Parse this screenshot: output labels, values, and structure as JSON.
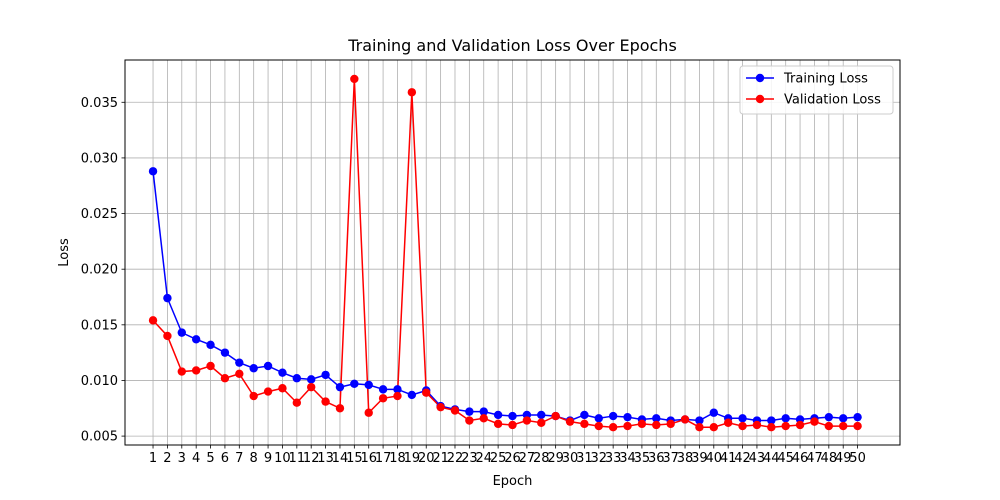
{
  "chart_data": {
    "type": "line",
    "title": "Training and Validation Loss Over Epochs",
    "xlabel": "Epoch",
    "ylabel": "Loss",
    "x": [
      1,
      2,
      3,
      4,
      5,
      6,
      7,
      8,
      9,
      10,
      11,
      12,
      13,
      14,
      15,
      16,
      17,
      18,
      19,
      20,
      21,
      22,
      23,
      24,
      25,
      26,
      27,
      28,
      29,
      30,
      31,
      32,
      33,
      34,
      35,
      36,
      37,
      38,
      39,
      40,
      41,
      42,
      43,
      44,
      45,
      46,
      47,
      48,
      49,
      50
    ],
    "xlim": [
      -0.95,
      52.95
    ],
    "ylim": [
      0.0042,
      0.0388
    ],
    "yticks": [
      0.005,
      0.01,
      0.015,
      0.02,
      0.025,
      0.03,
      0.035
    ],
    "ytick_labels": [
      "0.005",
      "0.010",
      "0.015",
      "0.020",
      "0.025",
      "0.030",
      "0.035"
    ],
    "grid": true,
    "legend_position": "top-right",
    "series": [
      {
        "name": "Training Loss",
        "color": "#0000ff",
        "marker": "circle",
        "values": [
          0.0288,
          0.0174,
          0.0143,
          0.0137,
          0.0132,
          0.0125,
          0.0116,
          0.0111,
          0.0113,
          0.0107,
          0.0102,
          0.0101,
          0.0105,
          0.0094,
          0.0097,
          0.0096,
          0.0092,
          0.0092,
          0.0087,
          0.0091,
          0.0077,
          0.0074,
          0.0072,
          0.0072,
          0.0069,
          0.0068,
          0.0069,
          0.0069,
          0.0068,
          0.0064,
          0.0069,
          0.0066,
          0.0068,
          0.0067,
          0.0065,
          0.0066,
          0.0064,
          0.0065,
          0.0064,
          0.0071,
          0.0066,
          0.0066,
          0.0064,
          0.0064,
          0.0066,
          0.0065,
          0.0066,
          0.0067,
          0.0066,
          0.0067
        ]
      },
      {
        "name": "Validation Loss",
        "color": "#ff0000",
        "marker": "circle",
        "values": [
          0.0154,
          0.014,
          0.0108,
          0.0109,
          0.0113,
          0.0102,
          0.0106,
          0.0086,
          0.009,
          0.0093,
          0.008,
          0.0094,
          0.0081,
          0.0075,
          0.0371,
          0.0071,
          0.0084,
          0.0086,
          0.0359,
          0.0089,
          0.0076,
          0.0073,
          0.0064,
          0.0066,
          0.0061,
          0.006,
          0.0064,
          0.0062,
          0.0068,
          0.0063,
          0.0061,
          0.0059,
          0.0058,
          0.0059,
          0.0061,
          0.006,
          0.0061,
          0.0065,
          0.0058,
          0.0058,
          0.0062,
          0.0059,
          0.006,
          0.0058,
          0.0059,
          0.006,
          0.0063,
          0.0059,
          0.0059,
          0.0059
        ]
      }
    ]
  }
}
